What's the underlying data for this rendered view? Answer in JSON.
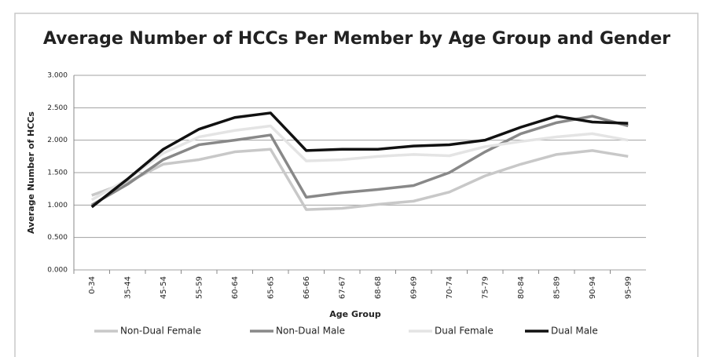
{
  "chart_data": {
    "type": "line",
    "title": "Average Number of HCCs Per Member by Age Group and Gender",
    "x_label": "Age Group",
    "y_label": "Average Number of HCCs",
    "categories": [
      "0-34",
      "35-44",
      "45-54",
      "55-59",
      "60-64",
      "65-65",
      "66-66",
      "67-67",
      "68-68",
      "69-69",
      "70-74",
      "75-79",
      "80-84",
      "85-89",
      "90-94",
      "95-99"
    ],
    "series": [
      {
        "name": "Non-Dual Female",
        "color": "#c8c8c8",
        "values": [
          1.15,
          1.35,
          1.63,
          1.7,
          1.82,
          1.86,
          0.93,
          0.95,
          1.01,
          1.06,
          1.2,
          1.45,
          1.63,
          1.78,
          1.84,
          1.75
        ]
      },
      {
        "name": "Non-Dual Male",
        "color": "#888888",
        "values": [
          1.0,
          1.32,
          1.7,
          1.93,
          2.0,
          2.08,
          1.12,
          1.19,
          1.24,
          1.3,
          1.5,
          1.82,
          2.1,
          2.27,
          2.37,
          2.22
        ]
      },
      {
        "name": "Dual Female",
        "color": "#e4e4e4",
        "values": [
          1.08,
          1.4,
          1.8,
          2.05,
          2.15,
          2.22,
          1.68,
          1.7,
          1.75,
          1.78,
          1.76,
          1.9,
          1.98,
          2.05,
          2.1,
          2.0
        ]
      },
      {
        "name": "Dual Male",
        "color": "#111111",
        "values": [
          0.97,
          1.4,
          1.86,
          2.17,
          2.35,
          2.42,
          1.84,
          1.86,
          1.86,
          1.91,
          1.93,
          2.0,
          2.2,
          2.37,
          2.28,
          2.26
        ]
      }
    ],
    "ylim": [
      0,
      3
    ],
    "yticks": [
      {
        "value": 0,
        "label": "0.000"
      },
      {
        "value": 0.5,
        "label": "0.500"
      },
      {
        "value": 1,
        "label": "1.000"
      },
      {
        "value": 1.5,
        "label": "1.500"
      },
      {
        "value": 2,
        "label": "2.000"
      },
      {
        "value": 2.5,
        "label": "2.500"
      },
      {
        "value": 3,
        "label": "3.000"
      }
    ],
    "grid": true,
    "legend": "bottom"
  }
}
